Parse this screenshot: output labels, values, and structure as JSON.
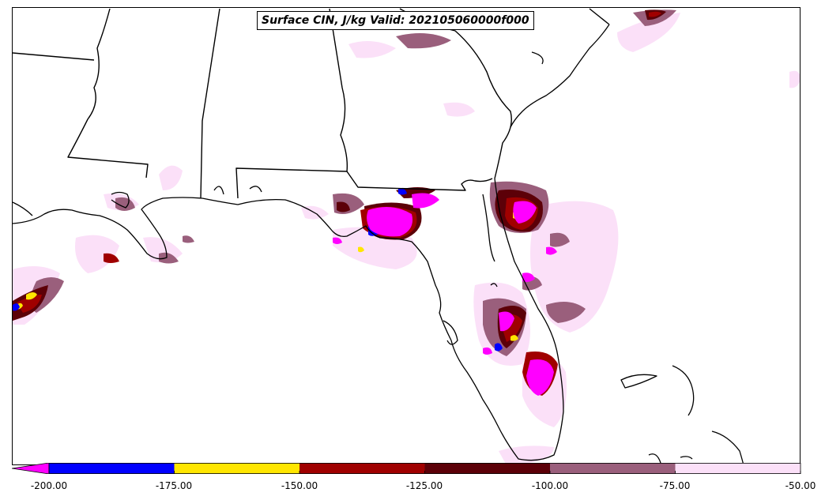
{
  "title": "Surface CIN, J/kg Valid: 202105060000f000",
  "colorbar": {
    "ticks": [
      "-200.00",
      "-175.00",
      "-150.00",
      "-125.00",
      "-100.00",
      "-75.00",
      "-50.00"
    ],
    "extend_color": "#ff00ff",
    "bins": [
      {
        "range": "-200 to -175",
        "color": "#0000ff"
      },
      {
        "range": "-175 to -150",
        "color": "#ffe600"
      },
      {
        "range": "-150 to -125",
        "color": "#a00000"
      },
      {
        "range": "-125 to -100",
        "color": "#5c0008"
      },
      {
        "range": "-100 to -75",
        "color": "#9a5f7c"
      },
      {
        "range": "-75 to -50",
        "color": "#fbe0f8"
      }
    ]
  },
  "colors": {
    "magenta": "#ff00ff",
    "blue": "#0000ff",
    "yellow": "#ffe600",
    "red": "#a00000",
    "dark_red": "#5c0008",
    "mauve": "#9a5f7c",
    "pale_pink": "#fbe0f8",
    "boundaries": "#000000"
  }
}
